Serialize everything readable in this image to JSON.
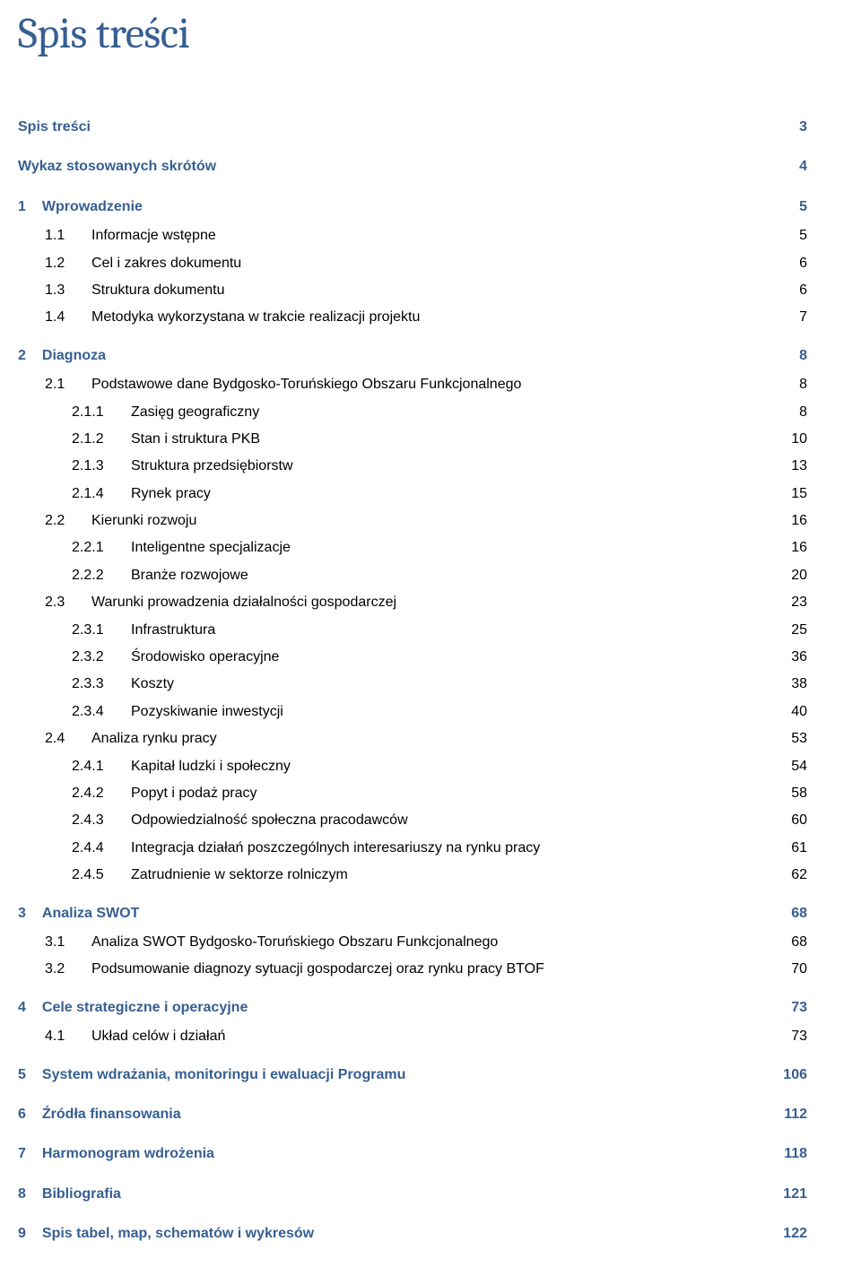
{
  "title": "Spis treści",
  "colors": {
    "heading": "#365f91",
    "body": "#000000",
    "background": "#ffffff"
  },
  "typography": {
    "title_font": "Cambria",
    "title_size_pt": 36,
    "body_font": "Arial",
    "heading_size_pt": 12,
    "body_size_pt": 12,
    "heading_weight": "bold"
  },
  "toc": [
    {
      "level": 0,
      "num": "",
      "label": "Spis treści",
      "page": "3"
    },
    {
      "level": 0,
      "num": "",
      "label": "Wykaz stosowanych skrótów",
      "page": "4"
    },
    {
      "level": 0,
      "num": "1",
      "label": "Wprowadzenie",
      "page": "5"
    },
    {
      "level": 1,
      "num": "1.1",
      "label": "Informacje wstępne",
      "page": "5"
    },
    {
      "level": 1,
      "num": "1.2",
      "label": "Cel i zakres dokumentu",
      "page": "6"
    },
    {
      "level": 1,
      "num": "1.3",
      "label": "Struktura dokumentu",
      "page": "6"
    },
    {
      "level": 1,
      "num": "1.4",
      "label": "Metodyka wykorzystana w trakcie realizacji projektu",
      "page": "7"
    },
    {
      "level": 0,
      "num": "2",
      "label": "Diagnoza",
      "page": "8"
    },
    {
      "level": 1,
      "num": "2.1",
      "label": "Podstawowe dane Bydgosko-Toruńskiego Obszaru Funkcjonalnego",
      "page": "8"
    },
    {
      "level": 2,
      "num": "2.1.1",
      "label": "Zasięg geograficzny",
      "page": "8"
    },
    {
      "level": 2,
      "num": "2.1.2",
      "label": "Stan i struktura PKB",
      "page": "10"
    },
    {
      "level": 2,
      "num": "2.1.3",
      "label": "Struktura przedsiębiorstw",
      "page": "13"
    },
    {
      "level": 2,
      "num": "2.1.4",
      "label": "Rynek pracy",
      "page": "15"
    },
    {
      "level": 1,
      "num": "2.2",
      "label": "Kierunki rozwoju",
      "page": "16"
    },
    {
      "level": 2,
      "num": "2.2.1",
      "label": "Inteligentne specjalizacje",
      "page": "16"
    },
    {
      "level": 2,
      "num": "2.2.2",
      "label": "Branże rozwojowe",
      "page": "20"
    },
    {
      "level": 1,
      "num": "2.3",
      "label": "Warunki prowadzenia działalności gospodarczej",
      "page": "23"
    },
    {
      "level": 2,
      "num": "2.3.1",
      "label": "Infrastruktura",
      "page": "25"
    },
    {
      "level": 2,
      "num": "2.3.2",
      "label": "Środowisko operacyjne",
      "page": "36"
    },
    {
      "level": 2,
      "num": "2.3.3",
      "label": "Koszty",
      "page": "38"
    },
    {
      "level": 2,
      "num": "2.3.4",
      "label": "Pozyskiwanie inwestycji",
      "page": "40"
    },
    {
      "level": 1,
      "num": "2.4",
      "label": "Analiza rynku pracy",
      "page": "53"
    },
    {
      "level": 2,
      "num": "2.4.1",
      "label": "Kapitał ludzki i społeczny",
      "page": "54"
    },
    {
      "level": 2,
      "num": "2.4.2",
      "label": "Popyt i podaż pracy",
      "page": "58"
    },
    {
      "level": 2,
      "num": "2.4.3",
      "label": "Odpowiedzialność społeczna pracodawców",
      "page": "60"
    },
    {
      "level": 2,
      "num": "2.4.4",
      "label": "Integracja działań poszczególnych interesariuszy na rynku pracy",
      "page": "61"
    },
    {
      "level": 2,
      "num": "2.4.5",
      "label": "Zatrudnienie w sektorze rolniczym",
      "page": "62"
    },
    {
      "level": 0,
      "num": "3",
      "label": "Analiza SWOT",
      "page": "68"
    },
    {
      "level": 1,
      "num": "3.1",
      "label": "Analiza SWOT Bydgosko-Toruńskiego Obszaru Funkcjonalnego",
      "page": "68"
    },
    {
      "level": 1,
      "num": "3.2",
      "label": "Podsumowanie diagnozy sytuacji gospodarczej oraz rynku pracy BTOF",
      "page": "70"
    },
    {
      "level": 0,
      "num": "4",
      "label": "Cele strategiczne i operacyjne",
      "page": "73"
    },
    {
      "level": 1,
      "num": "4.1",
      "label": "Układ celów i działań",
      "page": "73"
    },
    {
      "level": 0,
      "num": "5",
      "label": "System wdrażania, monitoringu  i ewaluacji Programu",
      "page": "106"
    },
    {
      "level": 0,
      "num": "6",
      "label": "Źródła finansowania",
      "page": "112"
    },
    {
      "level": 0,
      "num": "7",
      "label": "Harmonogram wdrożenia",
      "page": "118"
    },
    {
      "level": 0,
      "num": "8",
      "label": "Bibliografia",
      "page": "121"
    },
    {
      "level": 0,
      "num": "9",
      "label": "Spis tabel, map, schematów i wykresów",
      "page": "122"
    }
  ]
}
